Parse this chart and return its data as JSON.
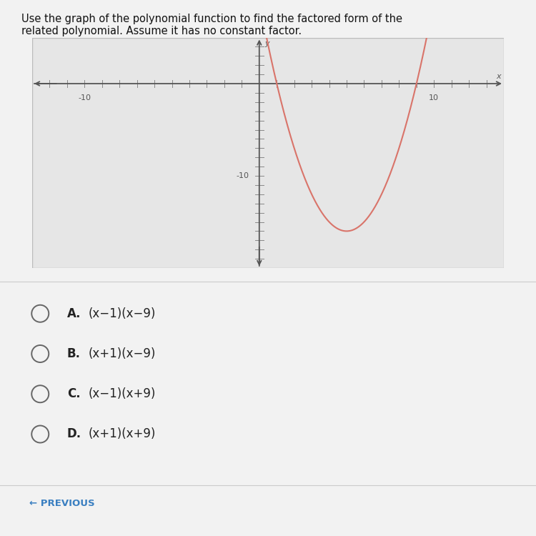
{
  "title_line1": "Use the graph of the polynomial function to find the factored form of the",
  "title_line2": "related polynomial. Assume it has no constant factor.",
  "graph_xlim": [
    -13,
    14
  ],
  "graph_ylim": [
    -20,
    5
  ],
  "x_tick_neg_label": "-10",
  "x_tick_pos_label": "10",
  "y_tick_neg_label": "-10",
  "curve_color": "#d9746a",
  "curve_roots": [
    1,
    9
  ],
  "bg_color": "#f2f2f2",
  "graph_bg": "#e6e6e6",
  "graph_border": "#bbbbbb",
  "axis_color": "#555555",
  "tick_color": "#888888",
  "answer_A": "(x−1)(x−9)",
  "answer_B": "(x+1)(x−9)",
  "answer_C": "(x−1)(x+9)",
  "answer_D": "(x+1)(x+9)",
  "answer_labels": [
    "A.",
    "B.",
    "C.",
    "D."
  ],
  "previous_text": "← PREVIOUS",
  "previous_color": "#3a7fc1",
  "radio_color": "#666666"
}
